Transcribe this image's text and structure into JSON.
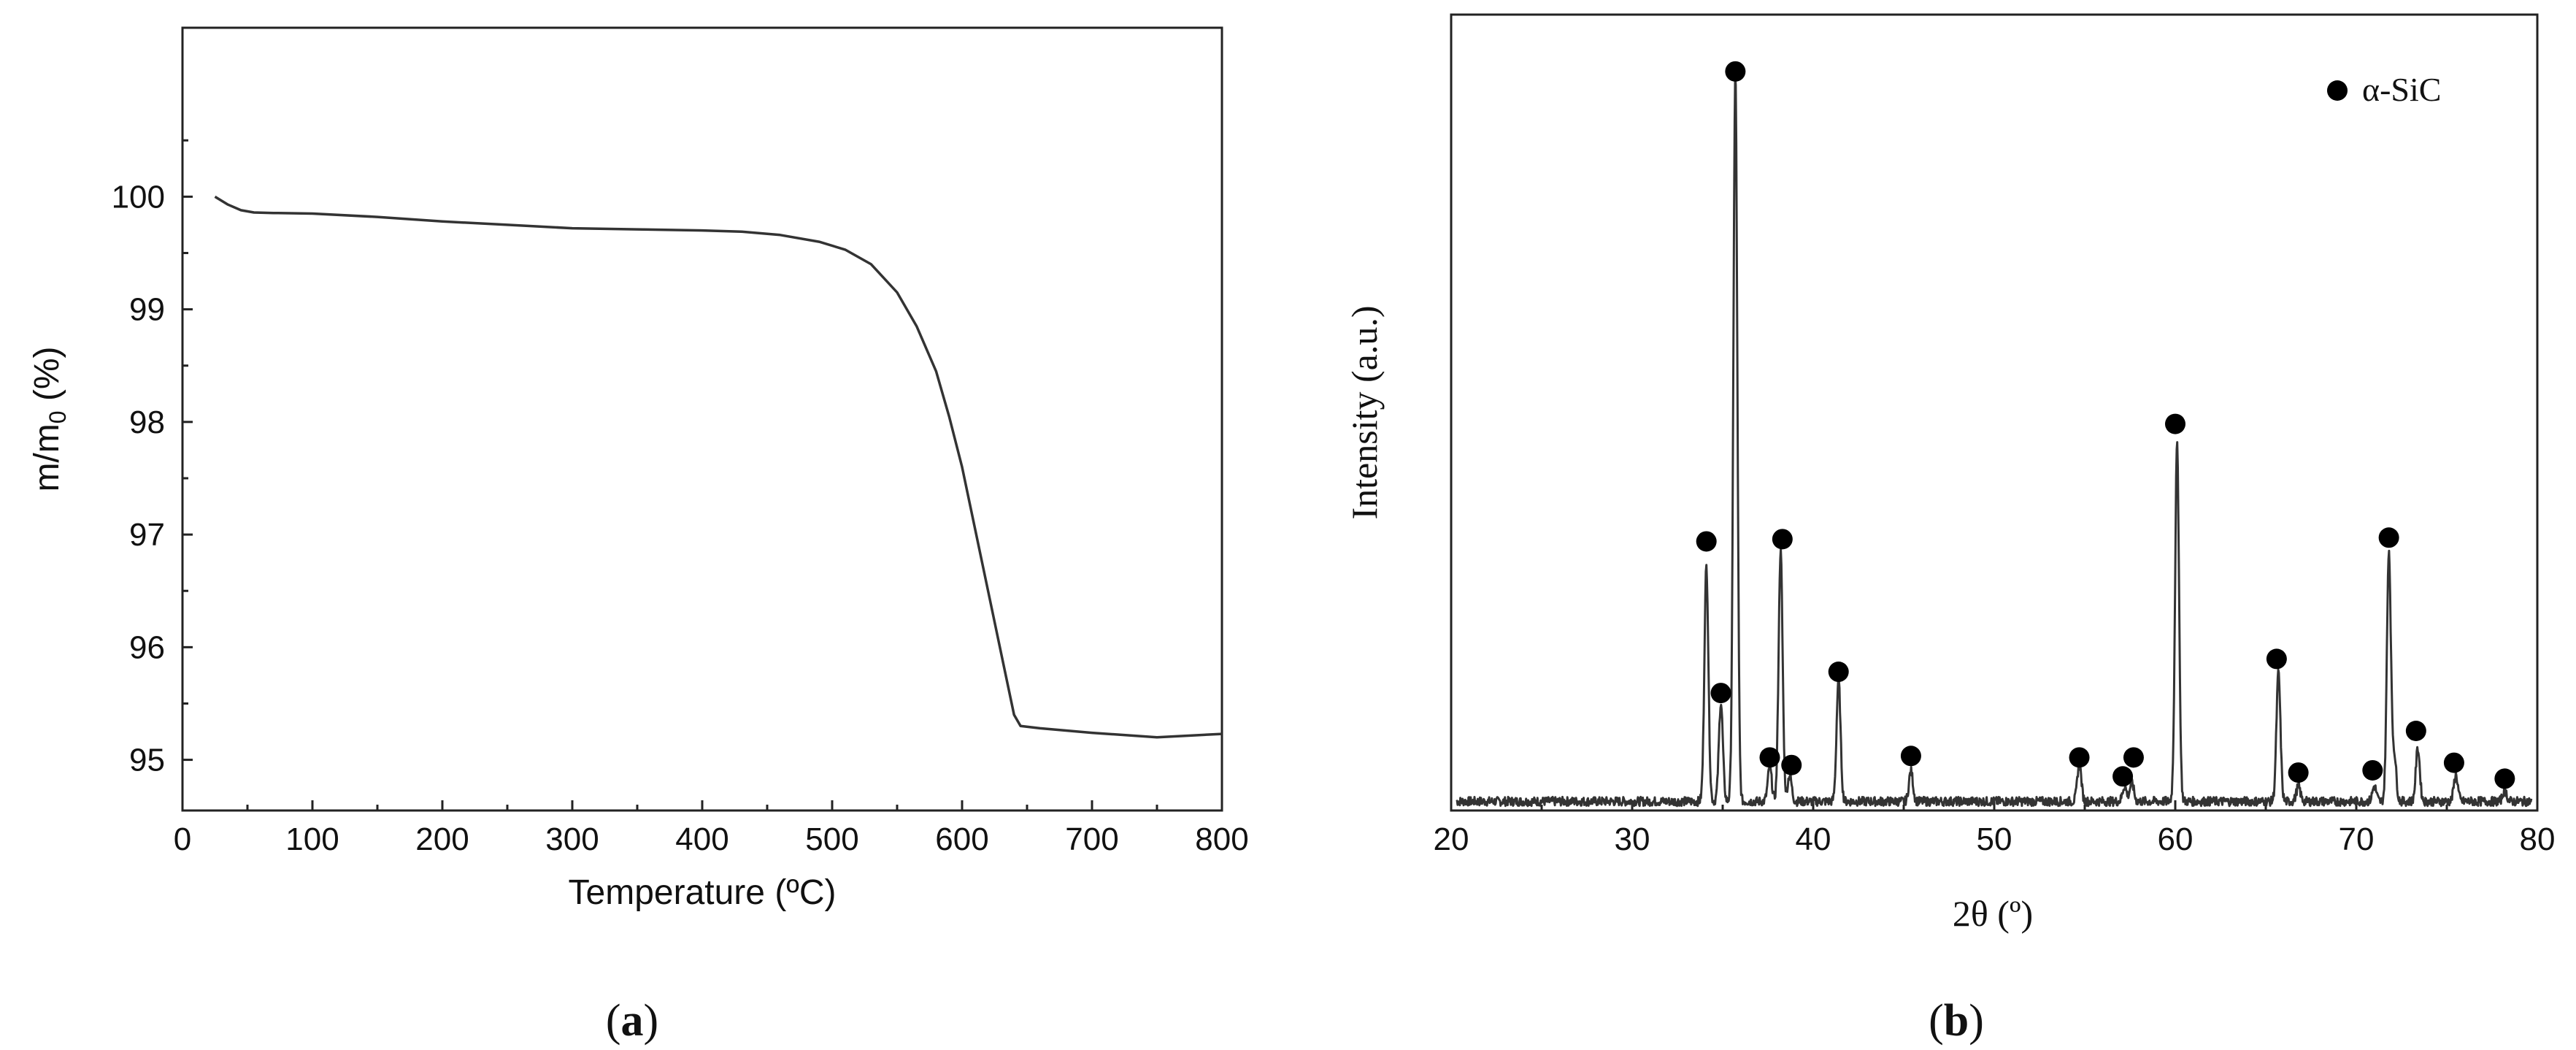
{
  "chart_data": [
    {
      "type": "line",
      "panel_label_open": "(",
      "panel_label_letter": "a",
      "panel_label_close": ")",
      "xlabel": "Temperature (ºC)",
      "ylabel_main": "m/m",
      "ylabel_sub": "0",
      "ylabel_unit": " (%)",
      "xlim": [
        0,
        800
      ],
      "ylim": [
        94.55,
        101.5
      ],
      "xticks": [
        0,
        100,
        200,
        300,
        400,
        500,
        600,
        700,
        800
      ],
      "yticks": [
        95,
        96,
        97,
        98,
        99,
        100
      ],
      "grid": false,
      "series": [
        {
          "x": [
            25,
            35,
            45,
            55,
            70,
            100,
            150,
            200,
            250,
            300,
            350,
            400,
            430,
            460,
            490,
            510,
            530,
            550,
            565,
            580,
            590,
            600,
            610,
            620,
            630,
            640,
            645,
            660,
            700,
            750,
            800
          ],
          "y": [
            100.0,
            99.93,
            99.88,
            99.86,
            99.855,
            99.85,
            99.82,
            99.78,
            99.75,
            99.72,
            99.71,
            99.7,
            99.69,
            99.66,
            99.6,
            99.53,
            99.4,
            99.15,
            98.85,
            98.45,
            98.05,
            97.6,
            97.05,
            96.5,
            95.95,
            95.4,
            95.3,
            95.28,
            95.24,
            95.2,
            95.23
          ]
        }
      ]
    },
    {
      "type": "line",
      "panel_label_open": "(",
      "panel_label_letter": "b",
      "panel_label_close": ")",
      "xlabel": "2θ (º)",
      "ylabel": "Intensity (a.u.)",
      "legend_label": "α-SiC",
      "legend_placement": "top-right",
      "xlim": [
        20,
        80
      ],
      "ylim": [
        0,
        1.05
      ],
      "xticks": [
        20,
        30,
        40,
        50,
        60,
        70,
        80
      ],
      "grid": false,
      "baseline": 0.012,
      "peaks": [
        {
          "x": 34.1,
          "h": 0.31
        },
        {
          "x": 34.9,
          "h": 0.13
        },
        {
          "x": 35.7,
          "h": 0.96
        },
        {
          "x": 37.6,
          "h": 0.045
        },
        {
          "x": 38.2,
          "h": 0.33
        },
        {
          "x": 38.7,
          "h": 0.035
        },
        {
          "x": 41.4,
          "h": 0.16
        },
        {
          "x": 45.4,
          "h": 0.04
        },
        {
          "x": 54.7,
          "h": 0.05
        },
        {
          "x": 57.2,
          "h": 0.02
        },
        {
          "x": 57.6,
          "h": 0.025
        },
        {
          "x": 60.1,
          "h": 0.47
        },
        {
          "x": 65.7,
          "h": 0.17
        },
        {
          "x": 66.8,
          "h": 0.02
        },
        {
          "x": 71.0,
          "h": 0.02
        },
        {
          "x": 71.8,
          "h": 0.33
        },
        {
          "x": 72.1,
          "h": 0.06
        },
        {
          "x": 73.4,
          "h": 0.07
        },
        {
          "x": 75.5,
          "h": 0.035
        },
        {
          "x": 78.2,
          "h": 0.015
        }
      ],
      "markers": [
        {
          "x": 34.1,
          "y": 0.355
        },
        {
          "x": 34.9,
          "y": 0.155
        },
        {
          "x": 35.7,
          "y": 0.975
        },
        {
          "x": 37.6,
          "y": 0.07
        },
        {
          "x": 38.3,
          "y": 0.358
        },
        {
          "x": 38.8,
          "y": 0.06
        },
        {
          "x": 41.4,
          "y": 0.183
        },
        {
          "x": 45.4,
          "y": 0.072
        },
        {
          "x": 54.7,
          "y": 0.07
        },
        {
          "x": 57.1,
          "y": 0.045
        },
        {
          "x": 57.7,
          "y": 0.07
        },
        {
          "x": 60.0,
          "y": 0.51
        },
        {
          "x": 65.6,
          "y": 0.2
        },
        {
          "x": 66.8,
          "y": 0.05
        },
        {
          "x": 70.9,
          "y": 0.053
        },
        {
          "x": 71.8,
          "y": 0.36
        },
        {
          "x": 73.3,
          "y": 0.105
        },
        {
          "x": 75.4,
          "y": 0.063
        },
        {
          "x": 78.2,
          "y": 0.042
        }
      ]
    }
  ]
}
